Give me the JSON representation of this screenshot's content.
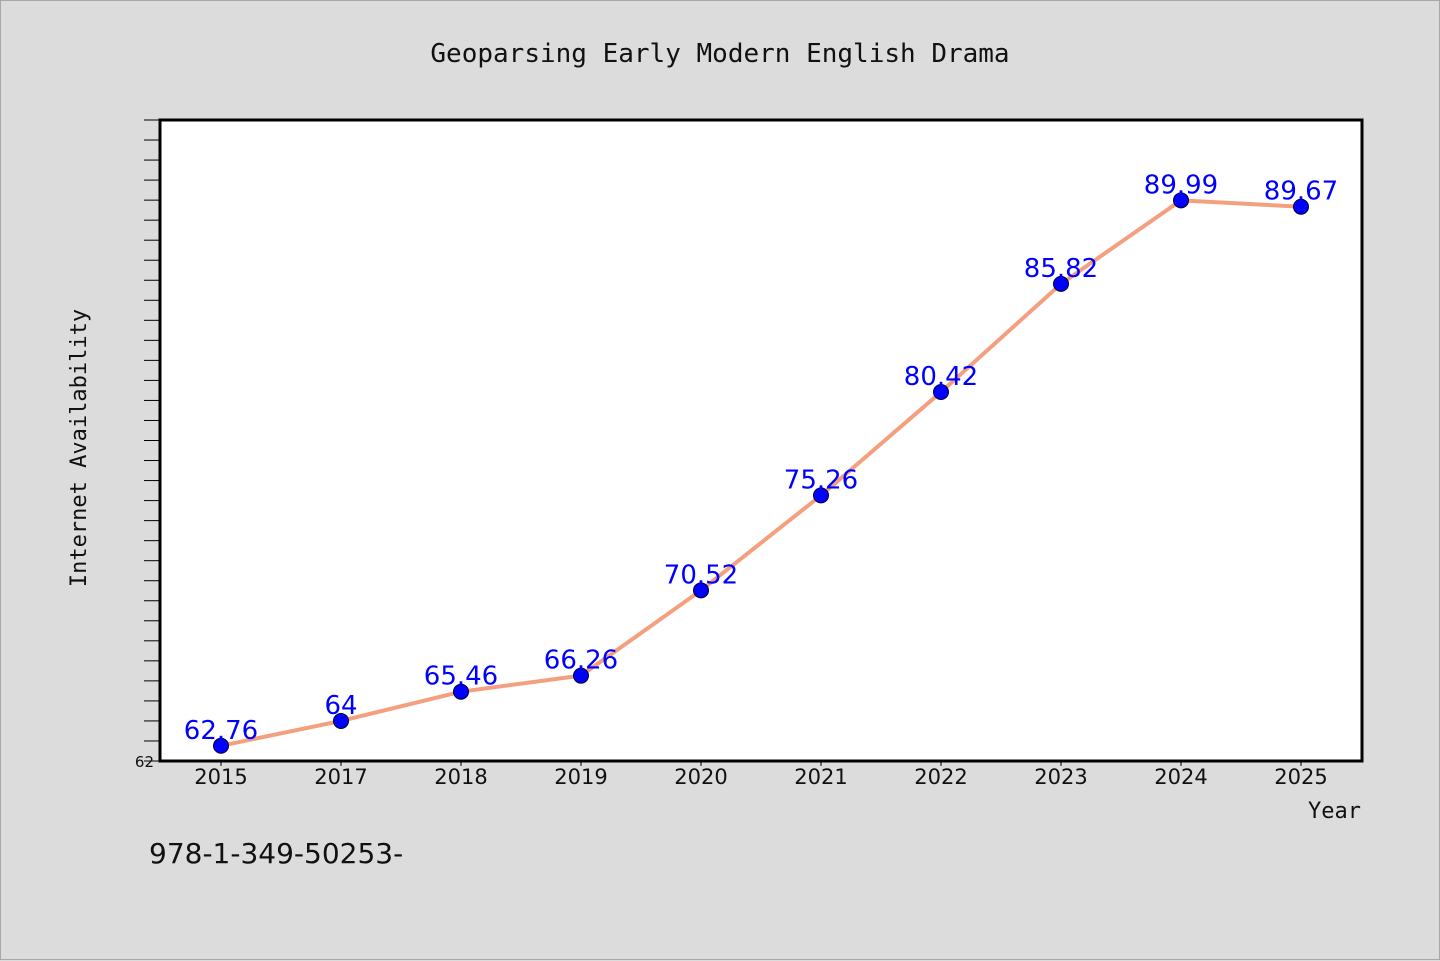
{
  "chart_data": {
    "type": "line",
    "title": "Geoparsing Early Modern English Drama",
    "xlabel": "Year",
    "ylabel": "Internet Availability",
    "categories": [
      "2015",
      "2017",
      "2018",
      "2019",
      "2020",
      "2021",
      "2022",
      "2023",
      "2024",
      "2025"
    ],
    "series": [
      {
        "values": [
          62.76,
          64,
          65.46,
          66.26,
          70.52,
          75.26,
          80.42,
          85.82,
          89.99,
          89.67
        ],
        "labels": [
          "62.76",
          "64",
          "65.46",
          "66.26",
          "70.52",
          "75.26",
          "80.42",
          "85.82",
          "89.99",
          "89.67"
        ]
      }
    ],
    "ylim": [
      62,
      94
    ],
    "yticks": [
      "62"
    ],
    "grid": false,
    "line_color": "#f4a07f",
    "marker_color": "#0000ff",
    "label_color": "#0000ff"
  },
  "footnote": "978-1-349-50253-"
}
